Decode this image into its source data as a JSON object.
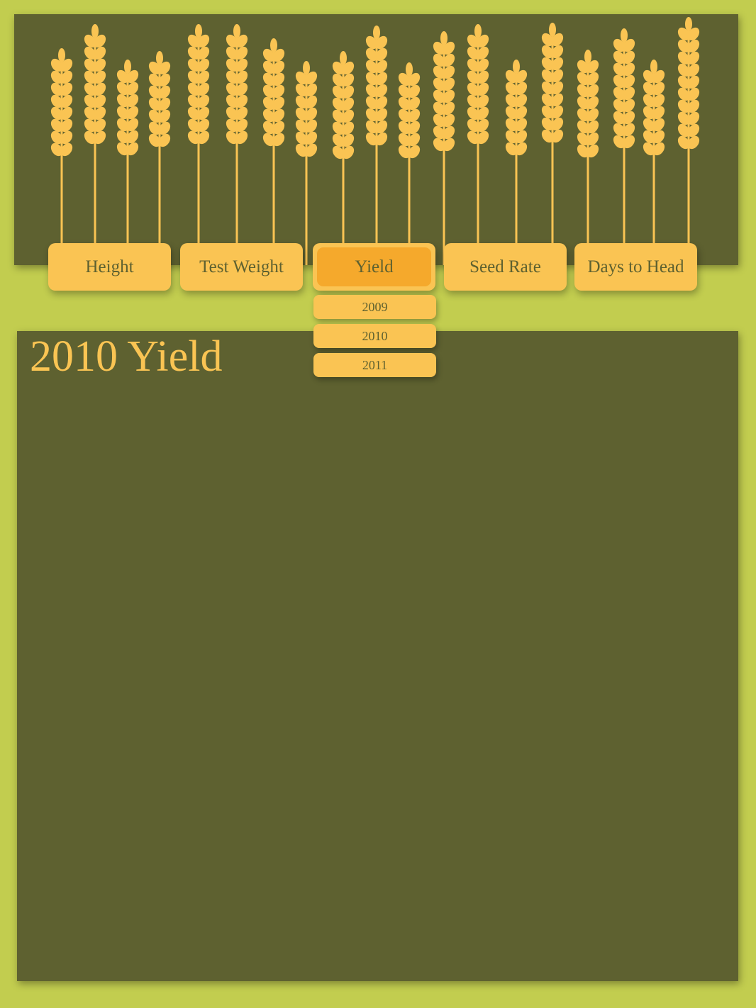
{
  "colors": {
    "background": "#c2cd4f",
    "panel": "#5e6130",
    "accent": "#fac453",
    "active": "#f5a92c"
  },
  "header": {
    "decoration": "wheat-stalks-icon"
  },
  "nav": {
    "items": [
      {
        "label": "Height"
      },
      {
        "label": "Test Weight"
      },
      {
        "label": "Yield",
        "active": true
      },
      {
        "label": "Seed Rate"
      },
      {
        "label": "Days to Head"
      }
    ],
    "yield_submenu": [
      "2009",
      "2010",
      "2011"
    ]
  },
  "content": {
    "title": "2010 Yield"
  }
}
